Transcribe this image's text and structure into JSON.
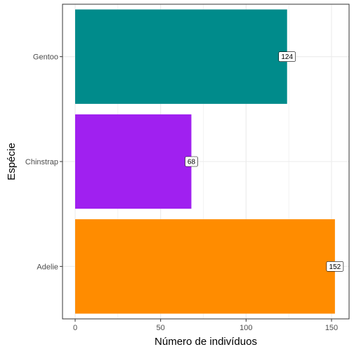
{
  "chart_data": {
    "type": "bar",
    "orientation": "horizontal",
    "categories": [
      "Adelie",
      "Chinstrap",
      "Gentoo"
    ],
    "values": [
      152,
      68,
      124
    ],
    "colors": [
      "#FF8C00",
      "#A020F0",
      "#008B8B"
    ],
    "xlabel": "Número de indivíduos",
    "ylabel": "Espécie",
    "xlim": [
      0,
      159.6
    ],
    "xticks": [
      0,
      50,
      100,
      150
    ],
    "grid": true,
    "legend": "none"
  }
}
